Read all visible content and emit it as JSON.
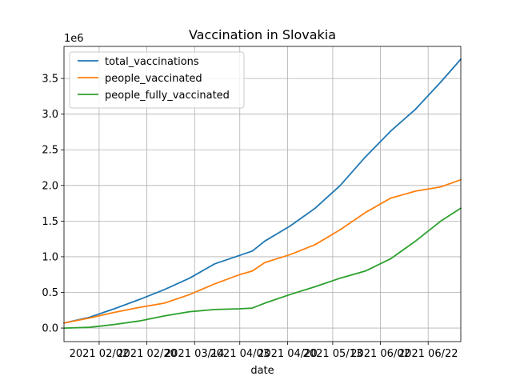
{
  "chart_data": {
    "type": "line",
    "title": "Vaccination in Slovakia",
    "xlabel": "date",
    "ylabel": "",
    "y_multiplier_label": "1e6",
    "ylim": [
      -0.19,
      3.95
    ],
    "yticks": [
      0.0,
      0.5,
      1.0,
      1.5,
      2.0,
      2.5,
      3.0,
      3.5
    ],
    "ytick_labels": [
      "0.0",
      "0.5",
      "1.0",
      "1.5",
      "2.0",
      "2.5",
      "3.0",
      "3.5"
    ],
    "xlim": [
      0,
      158
    ],
    "xticks": [
      14,
      33,
      52,
      70,
      89,
      107,
      126,
      145
    ],
    "xtick_labels": [
      "2021 02/02",
      "2021 02/20",
      "2021 03/14",
      "2021 04/03",
      "2021 04/20",
      "2021 05/13",
      "2021 06/02",
      "2021 06/22"
    ],
    "grid": true,
    "legend_position": "upper-left",
    "x": [
      0,
      10,
      20,
      30,
      40,
      50,
      60,
      70,
      75,
      80,
      90,
      100,
      110,
      120,
      130,
      140,
      150,
      158
    ],
    "series": [
      {
        "name": "total_vaccinations",
        "color": "#1f77b4",
        "values": [
          0.07,
          0.15,
          0.27,
          0.4,
          0.54,
          0.7,
          0.9,
          1.02,
          1.08,
          1.22,
          1.43,
          1.68,
          2.0,
          2.4,
          2.76,
          3.07,
          3.45,
          3.77
        ]
      },
      {
        "name": "people_vaccinated",
        "color": "#ff7f0e",
        "values": [
          0.07,
          0.14,
          0.22,
          0.29,
          0.35,
          0.47,
          0.62,
          0.75,
          0.8,
          0.92,
          1.03,
          1.17,
          1.38,
          1.62,
          1.82,
          1.92,
          1.98,
          2.08
        ]
      },
      {
        "name": "people_fully_vaccinated",
        "color": "#2ca02c",
        "values": [
          0.0,
          0.01,
          0.05,
          0.1,
          0.17,
          0.23,
          0.26,
          0.27,
          0.28,
          0.35,
          0.47,
          0.58,
          0.7,
          0.8,
          0.97,
          1.22,
          1.5,
          1.68
        ]
      }
    ]
  }
}
